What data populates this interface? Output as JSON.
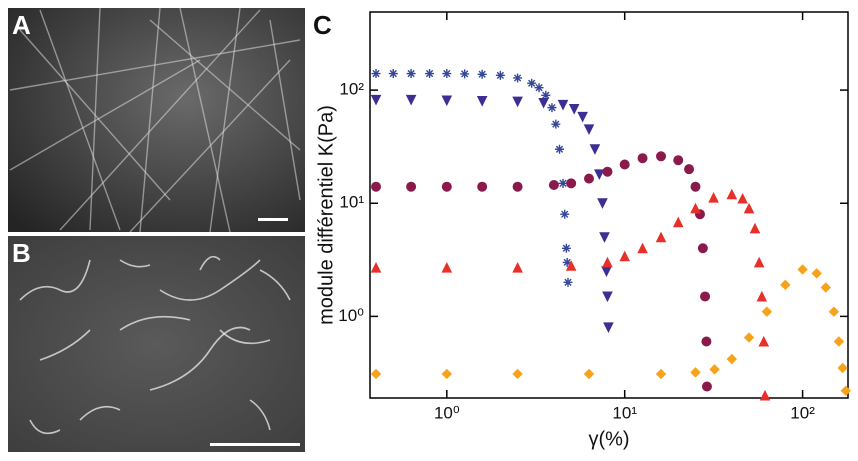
{
  "panels": {
    "a": "A",
    "b": "B",
    "c": "C"
  },
  "chart_data": {
    "type": "scatter",
    "log_x": true,
    "log_y": true,
    "x_label": "γ(%)",
    "y_label": "module différentiel K(Pa)",
    "xlim": [
      0.37,
      180
    ],
    "ylim": [
      0.19,
      490
    ],
    "xticks": [
      {
        "value": 1,
        "label": "10⁰"
      },
      {
        "value": 10,
        "label": "10¹"
      },
      {
        "value": 100,
        "label": "10²"
      }
    ],
    "yticks": [
      {
        "value": 1,
        "label": "10⁰"
      },
      {
        "value": 10,
        "label": "10¹"
      },
      {
        "value": 100,
        "label": "10²"
      }
    ],
    "series": [
      {
        "color": "#34489a",
        "marker": "asterisk",
        "x": [
          0.4,
          0.5,
          0.63,
          0.8,
          1,
          1.26,
          1.58,
          2,
          2.5,
          3,
          3.3,
          3.6,
          3.9,
          4.1,
          4.3,
          4.5,
          4.6,
          4.7,
          4.75,
          4.8
        ],
        "values": [
          140,
          140,
          140,
          140,
          140,
          139,
          138,
          135,
          128,
          115,
          105,
          90,
          70,
          50,
          30,
          15,
          8,
          4,
          3,
          2
        ]
      },
      {
        "color": "#3c2f94",
        "marker": "triangle-down",
        "x": [
          0.4,
          0.63,
          1,
          1.58,
          2.5,
          3.5,
          4.5,
          5.2,
          5.8,
          6.3,
          6.8,
          7.2,
          7.5,
          7.7,
          7.9,
          8,
          8.1
        ],
        "values": [
          82,
          82,
          81,
          80,
          79,
          77,
          74,
          68,
          58,
          45,
          30,
          18,
          10,
          5,
          2.5,
          1.5,
          0.8
        ]
      },
      {
        "color": "#8a1a4c",
        "marker": "circle",
        "x": [
          0.4,
          0.63,
          1,
          1.58,
          2.5,
          4,
          5,
          6.3,
          8,
          10,
          12.6,
          16,
          20,
          23,
          25,
          26.5,
          27.5,
          28.3,
          28.8,
          29
        ],
        "values": [
          14,
          14,
          14,
          14,
          14,
          14.5,
          15,
          16.5,
          19,
          22,
          25,
          26,
          24,
          20,
          14,
          8,
          4,
          1.5,
          0.6,
          0.24
        ]
      },
      {
        "color": "#e8302a",
        "marker": "triangle-up",
        "x": [
          0.4,
          1,
          2.5,
          5,
          8,
          10,
          12.6,
          16,
          20,
          25,
          31.6,
          40,
          46,
          50,
          54,
          57,
          59,
          60.5,
          61.5
        ],
        "values": [
          2.7,
          2.7,
          2.7,
          2.8,
          3.0,
          3.4,
          4,
          5,
          6.8,
          9,
          11.2,
          12,
          11,
          9,
          6,
          3,
          1.5,
          0.6,
          0.2
        ]
      },
      {
        "color": "#f7a21b",
        "marker": "diamond",
        "x": [
          0.4,
          1,
          2.5,
          6.3,
          16,
          25,
          32,
          40,
          50,
          63,
          80,
          100,
          120,
          135,
          150,
          160,
          168,
          175
        ],
        "values": [
          0.31,
          0.31,
          0.31,
          0.31,
          0.31,
          0.32,
          0.34,
          0.42,
          0.65,
          1.1,
          1.9,
          2.6,
          2.4,
          1.8,
          1.1,
          0.6,
          0.35,
          0.22
        ]
      }
    ]
  }
}
